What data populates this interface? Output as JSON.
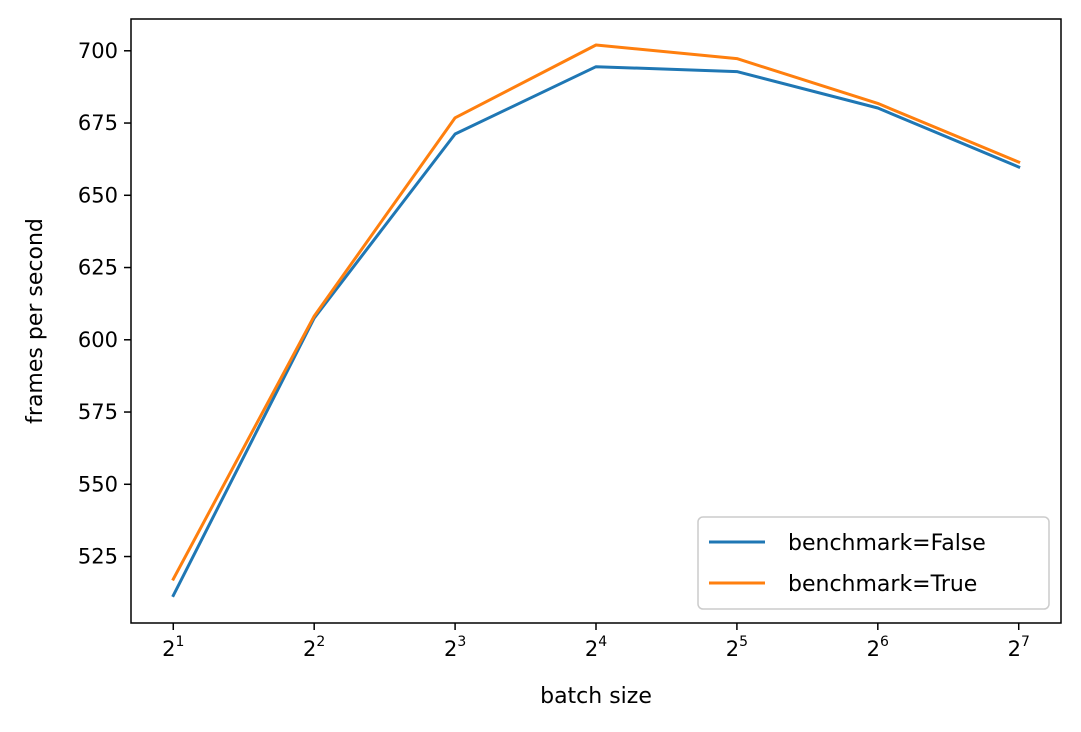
{
  "chart_data": {
    "type": "line",
    "title": "",
    "xlabel": "batch size",
    "ylabel": "frames per second",
    "x_scale": "log2",
    "x": [
      2,
      4,
      8,
      16,
      32,
      64,
      128
    ],
    "x_tick_labels": [
      {
        "base": "2",
        "exp": "1"
      },
      {
        "base": "2",
        "exp": "2"
      },
      {
        "base": "2",
        "exp": "3"
      },
      {
        "base": "2",
        "exp": "4"
      },
      {
        "base": "2",
        "exp": "5"
      },
      {
        "base": "2",
        "exp": "6"
      },
      {
        "base": "2",
        "exp": "7"
      }
    ],
    "yticks": [
      525,
      550,
      575,
      600,
      625,
      650,
      675,
      700
    ],
    "ylim": [
      502,
      711
    ],
    "grid": false,
    "legend_position": "lower-right",
    "series": [
      {
        "name": "benchmark=False",
        "color": "#1f77b4",
        "values": [
          511.5,
          607.5,
          671.2,
          694.5,
          692.8,
          680.2,
          659.8
        ]
      },
      {
        "name": "benchmark=True",
        "color": "#ff7f0e",
        "values": [
          517.2,
          608.2,
          676.8,
          702.0,
          697.3,
          681.8,
          661.5
        ]
      }
    ]
  }
}
